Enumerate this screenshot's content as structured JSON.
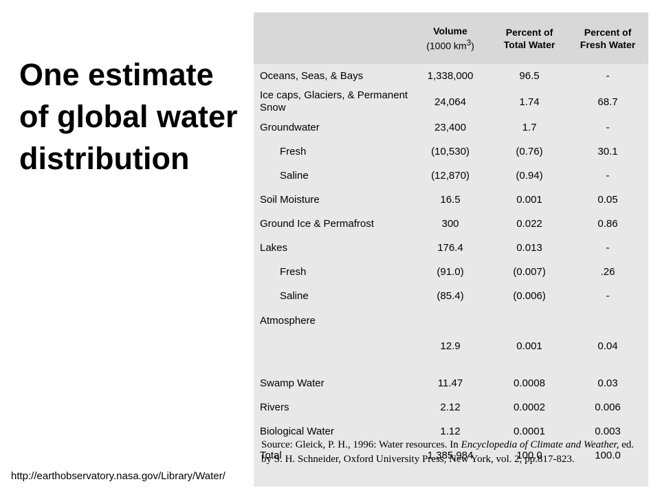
{
  "slide": {
    "title": "One estimate of global water distribution",
    "url": "http://earthobservatory.nasa.gov/Library/Water/"
  },
  "table": {
    "headers": {
      "volume": "Volume",
      "volume_unit": "(1000 km3)",
      "pct_total": "Percent of Total Water",
      "pct_fresh": "Percent of Fresh Water"
    },
    "rows": [
      {
        "name": "Oceans, Seas, & Bays",
        "volume": "1,338,000",
        "pct_total": "96.5",
        "pct_fresh": "-"
      },
      {
        "name": "Ice caps, Glaciers, & Permanent Snow",
        "volume": "24,064",
        "pct_total": "1.74",
        "pct_fresh": "68.7"
      },
      {
        "name": "Groundwater",
        "volume": "23,400",
        "pct_total": "1.7",
        "pct_fresh": "-"
      },
      {
        "name": "Fresh",
        "volume": "(10,530)",
        "pct_total": "(0.76)",
        "pct_fresh": "30.1"
      },
      {
        "name": "Saline",
        "volume": "(12,870)",
        "pct_total": "(0.94)",
        "pct_fresh": "-"
      },
      {
        "name": "Soil Moisture",
        "volume": "16.5",
        "pct_total": "0.001",
        "pct_fresh": "0.05"
      },
      {
        "name": "Ground Ice & Permafrost",
        "volume": "300",
        "pct_total": "0.022",
        "pct_fresh": "0.86"
      },
      {
        "name": "Lakes",
        "volume": "176.4",
        "pct_total": "0.013",
        "pct_fresh": "-"
      },
      {
        "name": "Fresh",
        "volume": "(91.0)",
        "pct_total": "(0.007)",
        "pct_fresh": ".26"
      },
      {
        "name": "Saline",
        "volume": "(85.4)",
        "pct_total": "(0.006)",
        "pct_fresh": "-"
      },
      {
        "name": "Atmosphere",
        "volume": "12.9",
        "pct_total": "0.001",
        "pct_fresh": "0.04"
      },
      {
        "name": "Swamp Water",
        "volume": "11.47",
        "pct_total": "0.0008",
        "pct_fresh": "0.03"
      },
      {
        "name": "Rivers",
        "volume": "2.12",
        "pct_total": "0.0002",
        "pct_fresh": "0.006"
      },
      {
        "name": "Biological Water",
        "volume": "1.12",
        "pct_total": "0.0001",
        "pct_fresh": "0.003"
      },
      {
        "name": "Total",
        "volume": "1,385,984",
        "pct_total": "100.0",
        "pct_fresh": "100.0"
      }
    ],
    "source": {
      "prefix": "Source: Gleick, P. H., 1996: Water resources. In ",
      "italic": "Encyclopedia of Climate and Weather,",
      "suffix": " ed. by S. H. Schneider, Oxford University Press, New York, vol. 2, pp.817-823."
    }
  }
}
